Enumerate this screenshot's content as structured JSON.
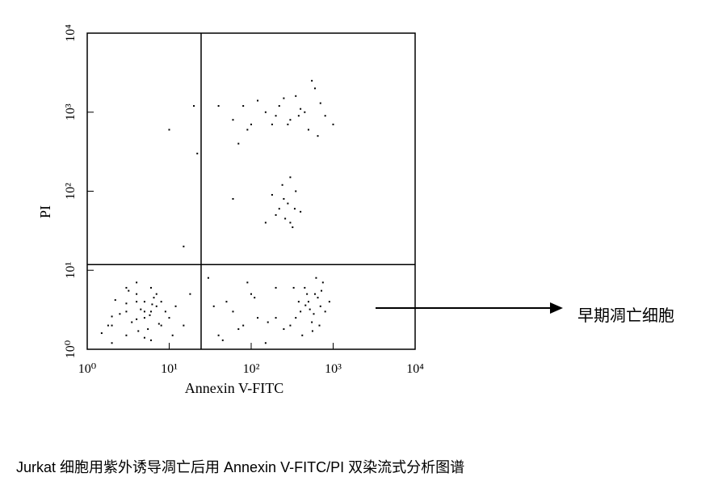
{
  "chart_data": {
    "type": "scatter",
    "xlabel": "Annexin V-FITC",
    "ylabel": "PI",
    "annotation": "早期凋亡细胞",
    "caption": "Jurkat 细胞用紫外诱导凋亡后用 Annexin V-FITC/PI 双染流式分析图谱",
    "xscale": "log",
    "yscale": "log",
    "color": "#000000",
    "xlim": [
      1,
      10000
    ],
    "ylim": [
      1,
      10000
    ],
    "xticks": [
      {
        "value": 1,
        "label": "10⁰"
      },
      {
        "value": 10,
        "label": "10¹"
      },
      {
        "value": 100,
        "label": "10²"
      },
      {
        "value": 1000,
        "label": "10³"
      },
      {
        "value": 10000,
        "label": "10⁴"
      }
    ],
    "yticks": [
      {
        "value": 1,
        "label": "10⁰"
      },
      {
        "value": 10,
        "label": "10¹"
      },
      {
        "value": 100,
        "label": "10²"
      },
      {
        "value": 1000,
        "label": "10³"
      },
      {
        "value": 10000,
        "label": "10⁴"
      }
    ],
    "quadrant_x": 24.5,
    "quadrant_y": 11.8,
    "x": [
      2,
      3,
      4,
      5,
      6,
      7,
      8,
      3,
      4,
      5,
      6,
      2.5,
      3.5,
      4.5,
      5.5,
      6.5,
      1.5,
      2,
      9,
      10,
      3,
      4,
      5,
      7,
      12,
      15,
      2,
      6,
      8,
      4,
      3,
      5,
      1.8,
      2.2,
      4.2,
      5.8,
      7.5,
      3.2,
      6.2,
      11,
      300,
      400,
      500,
      600,
      700,
      350,
      450,
      550,
      650,
      750,
      250,
      800,
      420,
      520,
      620,
      380,
      480,
      580,
      680,
      200,
      900,
      460,
      560,
      330,
      720,
      40,
      60,
      80,
      100,
      150,
      30,
      50,
      120,
      200,
      70,
      35,
      90,
      160,
      45,
      110,
      60,
      80,
      100,
      150,
      200,
      250,
      300,
      400,
      500,
      600,
      700,
      800,
      120,
      180,
      350,
      450,
      550,
      70,
      90,
      220,
      280,
      380,
      1000,
      650,
      40,
      200,
      250,
      300,
      350,
      220,
      280,
      320,
      180,
      260,
      340,
      150,
      400,
      240,
      300,
      60,
      20,
      10,
      15,
      22,
      18
    ],
    "values": [
      2,
      3,
      4,
      2.5,
      3,
      3.5,
      2,
      1.5,
      5,
      4,
      6,
      2.8,
      2.2,
      3.2,
      1.8,
      4.5,
      1.6,
      1.2,
      3,
      2.5,
      6,
      7,
      1.4,
      5,
      3.5,
      2,
      2.6,
      1.3,
      4,
      2.4,
      3.8,
      3,
      2,
      4.2,
      1.7,
      2.7,
      2.1,
      5.5,
      3.7,
      1.5,
      2,
      3,
      4,
      5,
      3.5,
      2.5,
      6,
      2.2,
      4.5,
      7,
      1.8,
      3,
      1.5,
      3.2,
      8,
      4,
      5,
      2.8,
      2,
      2.5,
      4,
      3.6,
      1.7,
      6,
      5.5,
      1.5,
      3,
      2,
      5,
      1.2,
      8,
      4,
      2.5,
      6,
      1.8,
      3.5,
      7,
      2.2,
      1.3,
      4.5,
      800,
      1200,
      700,
      1000,
      900,
      1500,
      800,
      1100,
      600,
      2000,
      1300,
      900,
      1400,
      700,
      1600,
      1000,
      2500,
      400,
      600,
      1200,
      700,
      900,
      700,
      500,
      1200,
      50,
      80,
      40,
      100,
      60,
      70,
      35,
      90,
      45,
      60,
      40,
      55,
      120,
      150,
      80,
      1200,
      600,
      20,
      300,
      5
    ]
  }
}
